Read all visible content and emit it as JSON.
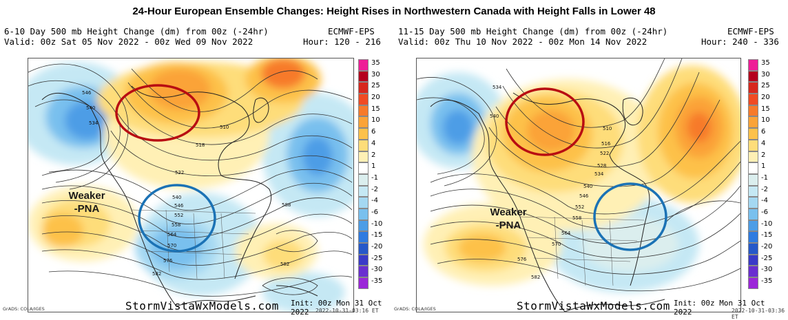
{
  "title": "24-Hour European Ensemble Changes: Height Rises in Northwestern Canada with Height Falls in Lower 48",
  "colorbar": {
    "labels": [
      "35",
      "30",
      "25",
      "20",
      "15",
      "10",
      "6",
      "4",
      "2",
      "1",
      "-1",
      "-2",
      "-4",
      "-6",
      "-10",
      "-15",
      "-20",
      "-25",
      "-30",
      "-35"
    ],
    "colors": [
      "#ee1e97",
      "#b4001e",
      "#d7281e",
      "#f04b23",
      "#f77a2a",
      "#fba337",
      "#fdc14a",
      "#fedd7a",
      "#fff0b5",
      "#ffffff",
      "#dbeeee",
      "#c5e8f4",
      "#a4d8f2",
      "#79c0ee",
      "#4d9de6",
      "#2f7be0",
      "#2659c9",
      "#3a3ac8",
      "#6a2ed0",
      "#9b27d8"
    ]
  },
  "panels": [
    {
      "id": "left",
      "header_line1_left": "6-10 Day 500 mb Height Change (dm) from 00z (-24hr)",
      "header_line1_right": "ECMWF-EPS",
      "header_line2_left": "Valid: 00z Sat 05 Nov 2022 - 00z Wed 09 Nov 2022",
      "header_line2_right": "Hour: 120 - 216",
      "annotation": "Weaker\n-PNA",
      "contour_labels": [
        "546",
        "540",
        "534",
        "510",
        "518",
        "522",
        "540",
        "546",
        "552",
        "558",
        "564",
        "570",
        "576",
        "582",
        "588",
        "582"
      ],
      "site": "StormVistaWxModels.com",
      "init": "Init: 00z Mon 31 Oct 2022",
      "stamp": "2022-10-31-03:16 ET",
      "grads": "GrADS: COLA/IGES"
    },
    {
      "id": "right",
      "header_line1_left": "11-15 Day 500 mb Height Change (dm) from 00z (-24hr)",
      "header_line1_right": "ECMWF-EPS",
      "header_line2_left": "Valid: 00z Thu 10 Nov 2022 - 00z Mon 14 Nov 2022",
      "header_line2_right": "Hour: 240 - 336",
      "annotation": "Weaker\n-PNA",
      "contour_labels": [
        "534",
        "540",
        "510",
        "516",
        "522",
        "528",
        "534",
        "540",
        "546",
        "552",
        "558",
        "564",
        "570",
        "576",
        "582"
      ],
      "site": "StormVistaWxModels.com",
      "init": "Init: 00z Mon 31 Oct 2022",
      "stamp": "2022-10-31-03:36 ET",
      "grads": "GrADS: COLA/IGES"
    }
  ]
}
